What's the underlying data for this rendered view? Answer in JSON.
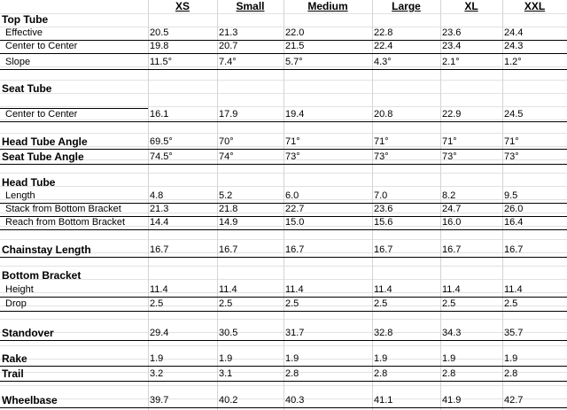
{
  "header": {
    "columns": [
      "XS",
      "Small",
      "Medium",
      "Large",
      "XL",
      "XXL"
    ]
  },
  "rows": [
    {
      "label": "Top Tube",
      "bold": true
    },
    {
      "label": "Effective",
      "values": [
        "20.5",
        "21.3",
        "22.0",
        "22.8",
        "23.6",
        "24.4"
      ]
    },
    {
      "label": "Center to Center",
      "values": [
        "19.8",
        "20.7",
        "21.5",
        "22.4",
        "23.4",
        "24.3"
      ]
    },
    {
      "label": "Slope",
      "values": [
        "11.5°",
        "7.4°",
        "5.7°",
        "4.3°",
        "2.1°",
        "1.2°"
      ]
    },
    {
      "label": "Seat Tube",
      "bold": true
    },
    {
      "label": "Center to Center",
      "values": [
        "16.1",
        "17.9",
        "19.4",
        "20.8",
        "22.9",
        "24.5"
      ]
    },
    {
      "label": "Head Tube Angle",
      "bold": true,
      "values": [
        "69.5°",
        "70°",
        "71°",
        "71°",
        "71°",
        "71°"
      ]
    },
    {
      "label": "Seat Tube Angle",
      "bold": true,
      "values": [
        "74.5°",
        "74°",
        "73°",
        "73°",
        "73°",
        "73°"
      ]
    },
    {
      "label": "Head Tube",
      "bold": true
    },
    {
      "label": "Length",
      "values": [
        "4.8",
        "5.2",
        "6.0",
        "7.0",
        "8.2",
        "9.5"
      ]
    },
    {
      "label": "Stack from Bottom Bracket",
      "values": [
        "21.3",
        "21.8",
        "22.7",
        "23.6",
        "24.7",
        "26.0"
      ]
    },
    {
      "label": "Reach from Bottom Bracket",
      "values": [
        "14.4",
        "14.9",
        "15.0",
        "15.6",
        "16.0",
        "16.4"
      ]
    },
    {
      "label": "Chainstay Length",
      "bold": true,
      "values": [
        "16.7",
        "16.7",
        "16.7",
        "16.7",
        "16.7",
        "16.7"
      ]
    },
    {
      "label": "Bottom Bracket",
      "bold": true
    },
    {
      "label": "Height",
      "values": [
        "11.4",
        "11.4",
        "11.4",
        "11.4",
        "11.4",
        "11.4"
      ]
    },
    {
      "label": "Drop",
      "values": [
        "2.5",
        "2.5",
        "2.5",
        "2.5",
        "2.5",
        "2.5"
      ]
    },
    {
      "label": "Standover",
      "bold": true,
      "values": [
        "29.4",
        "30.5",
        "31.7",
        "32.8",
        "34.3",
        "35.7"
      ]
    },
    {
      "label": "Rake",
      "bold": true,
      "values": [
        "1.9",
        "1.9",
        "1.9",
        "1.9",
        "1.9",
        "1.9"
      ]
    },
    {
      "label": "Trail",
      "bold": true,
      "values": [
        "3.2",
        "3.1",
        "2.8",
        "2.8",
        "2.8",
        "2.8"
      ]
    },
    {
      "label": "Wheelbase",
      "bold": true,
      "values": [
        "39.7",
        "40.2",
        "40.3",
        "41.1",
        "41.9",
        "42.7"
      ]
    }
  ]
}
